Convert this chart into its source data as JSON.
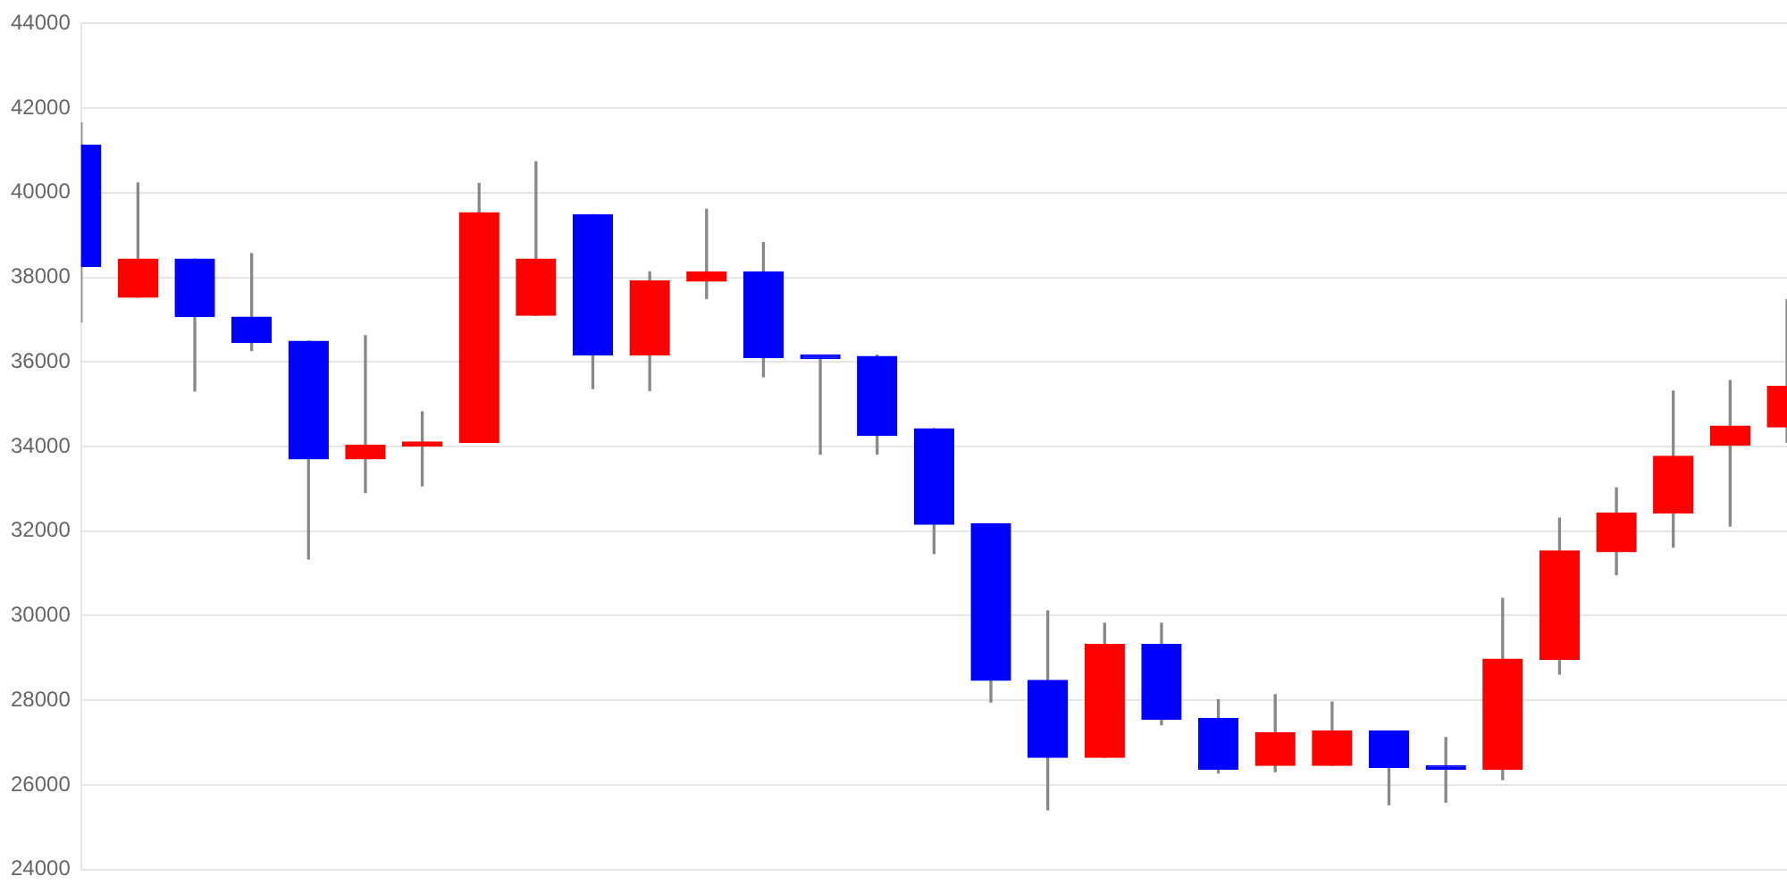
{
  "chart_data": {
    "type": "candlestick",
    "categories": [
      null,
      null,
      null,
      null,
      null,
      null,
      null,
      null,
      null,
      null,
      null,
      null,
      null,
      null,
      null,
      null,
      null,
      null,
      null,
      null,
      null,
      null,
      null,
      null,
      null,
      null,
      null,
      null,
      null,
      null,
      null
    ],
    "ohlc": [
      [
        41130,
        41650,
        36950,
        38260
      ],
      [
        37530,
        40230,
        37530,
        38430
      ],
      [
        38430,
        38430,
        35310,
        37070
      ],
      [
        37060,
        38560,
        36270,
        36460
      ],
      [
        36490,
        36490,
        31340,
        33710
      ],
      [
        33710,
        36620,
        32910,
        34030
      ],
      [
        34010,
        34820,
        33070,
        34110
      ],
      [
        34100,
        40220,
        34100,
        39530
      ],
      [
        37100,
        40730,
        37100,
        38430
      ],
      [
        39480,
        39480,
        35370,
        36160
      ],
      [
        36160,
        38130,
        35320,
        37920
      ],
      [
        37910,
        39610,
        37500,
        38130
      ],
      [
        38130,
        38820,
        35650,
        36100
      ],
      [
        36120,
        36120,
        33820,
        36080
      ],
      [
        36130,
        36160,
        33820,
        34260
      ],
      [
        34420,
        34420,
        31470,
        32160
      ],
      [
        32170,
        32170,
        27960,
        28470
      ],
      [
        28470,
        30110,
        25410,
        26650
      ],
      [
        26650,
        29820,
        26650,
        29320
      ],
      [
        29320,
        29820,
        27420,
        27550
      ],
      [
        27570,
        28010,
        26280,
        26370
      ],
      [
        26460,
        28130,
        26310,
        27230
      ],
      [
        26460,
        27960,
        26460,
        27270
      ],
      [
        27270,
        27270,
        25530,
        26410
      ],
      [
        26410,
        27120,
        25590,
        26370
      ],
      [
        26370,
        30410,
        26120,
        28970
      ],
      [
        28970,
        32310,
        28620,
        31530
      ],
      [
        31510,
        33020,
        30970,
        32430
      ],
      [
        32430,
        35310,
        31620,
        33770
      ],
      [
        34030,
        35560,
        32120,
        34480
      ],
      [
        34460,
        37470,
        34100,
        35420
      ]
    ],
    "colors": [
      "#0000ff",
      "#ff0000",
      "#0000ff",
      "#0000ff",
      "#0000ff",
      "#ff0000",
      "#ff0000",
      "#ff0000",
      "#ff0000",
      "#0000ff",
      "#ff0000",
      "#ff0000",
      "#0000ff",
      "#0000ff",
      "#0000ff",
      "#0000ff",
      "#0000ff",
      "#0000ff",
      "#ff0000",
      "#0000ff",
      "#0000ff",
      "#ff0000",
      "#ff0000",
      "#0000ff",
      "#0000ff",
      "#ff0000",
      "#ff0000",
      "#ff0000",
      "#ff0000",
      "#ff0000",
      "#ff0000"
    ],
    "ylim": [
      24000,
      44000
    ],
    "yticks": [
      24000,
      26000,
      28000,
      30000,
      32000,
      34000,
      36000,
      38000,
      40000,
      42000,
      44000
    ],
    "grid": "y"
  }
}
